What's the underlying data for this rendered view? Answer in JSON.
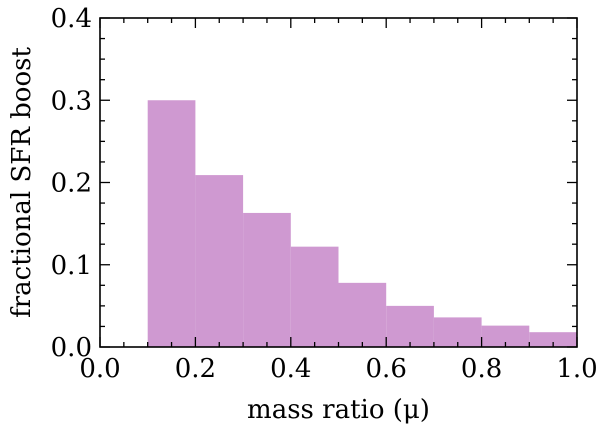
{
  "chart_data": {
    "type": "bar",
    "xlabel": "mass ratio (μ)",
    "ylabel": "fractional SFR boost",
    "xlim": [
      0.0,
      1.0
    ],
    "ylim": [
      0.0,
      0.4
    ],
    "grid": false,
    "bar_color": "#cf99d1",
    "bins": [
      {
        "x0": 0.1,
        "x1": 0.2,
        "value": 0.3
      },
      {
        "x0": 0.2,
        "x1": 0.3,
        "value": 0.209
      },
      {
        "x0": 0.3,
        "x1": 0.4,
        "value": 0.163
      },
      {
        "x0": 0.4,
        "x1": 0.5,
        "value": 0.122
      },
      {
        "x0": 0.5,
        "x1": 0.6,
        "value": 0.078
      },
      {
        "x0": 0.6,
        "x1": 0.7,
        "value": 0.05
      },
      {
        "x0": 0.7,
        "x1": 0.8,
        "value": 0.036
      },
      {
        "x0": 0.8,
        "x1": 0.9,
        "value": 0.026
      },
      {
        "x0": 0.9,
        "x1": 1.0,
        "value": 0.018
      }
    ],
    "x_ticks": [
      {
        "value": 0.0,
        "label": "0.0"
      },
      {
        "value": 0.2,
        "label": "0.2"
      },
      {
        "value": 0.4,
        "label": "0.4"
      },
      {
        "value": 0.6,
        "label": "0.6"
      },
      {
        "value": 0.8,
        "label": "0.8"
      },
      {
        "value": 1.0,
        "label": "1.0"
      }
    ],
    "y_ticks": [
      {
        "value": 0.0,
        "label": "0.0"
      },
      {
        "value": 0.1,
        "label": "0.1"
      },
      {
        "value": 0.2,
        "label": "0.2"
      },
      {
        "value": 0.3,
        "label": "0.3"
      },
      {
        "value": 0.4,
        "label": "0.4"
      }
    ],
    "x_minor_step": 0.05,
    "y_minor_step": 0.025
  }
}
